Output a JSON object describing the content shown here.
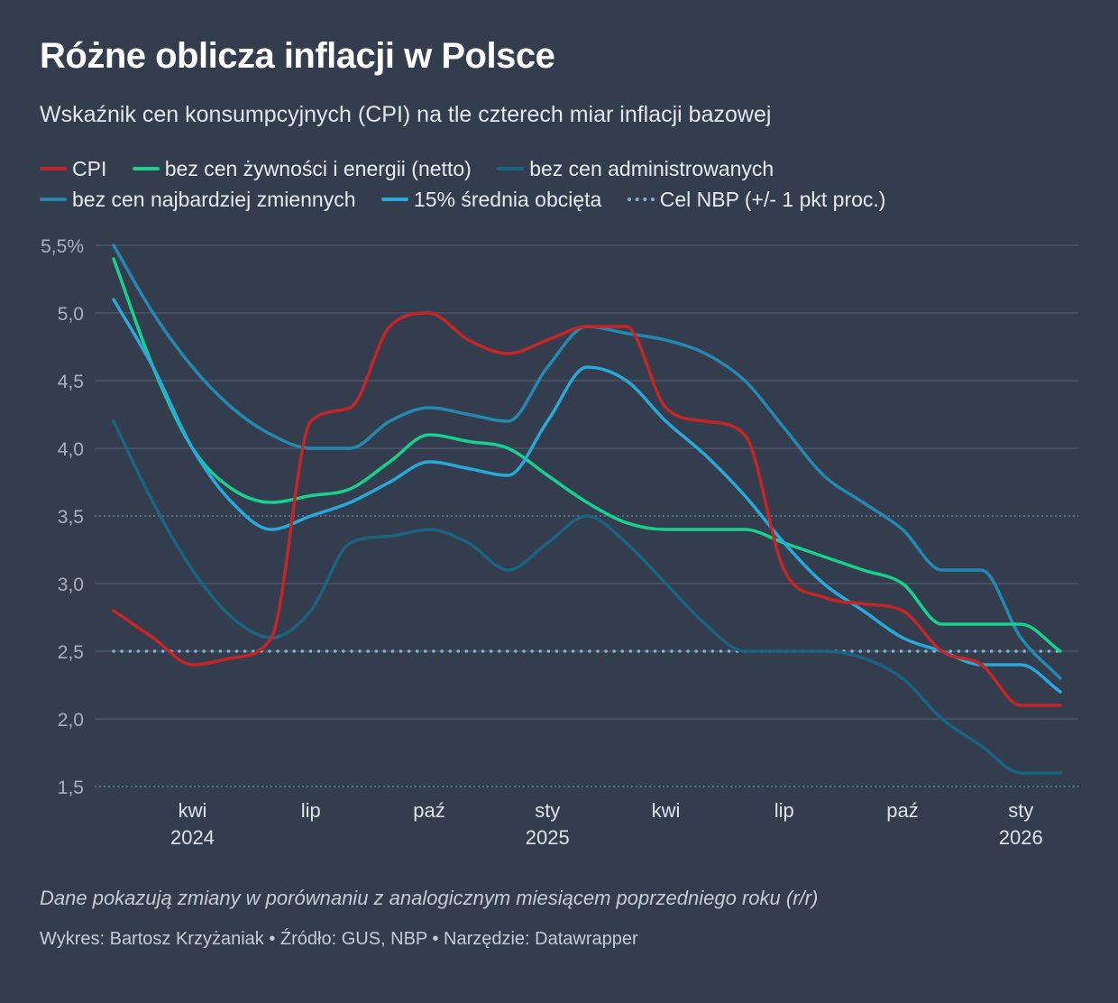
{
  "title": "Różne oblicza inflacji w Polsce",
  "subtitle": "Wskaźnik cen konsumpcyjnych (CPI) na tle czterech miar inflacji bazowej",
  "note": "Dane pokazują zmiany w porównaniu z analogicznym miesiącem poprzedniego roku (r/r)",
  "credit": "Wykres: Bartosz Krzyżaniak • Źródło: GUS, NBP • Narzędzie: Datawrapper",
  "legend": [
    {
      "label": "CPI",
      "color": "#c42526",
      "style": "solid"
    },
    {
      "label": "bez cen żywności i energii (netto)",
      "color": "#18d08f",
      "style": "solid"
    },
    {
      "label": "bez cen administrowanych",
      "color": "#1b6380",
      "style": "solid"
    },
    {
      "label": "bez cen najbardziej zmiennych",
      "color": "#2488b0",
      "style": "solid"
    },
    {
      "label": "15% średnia obcięta",
      "color": "#28a9da",
      "style": "solid"
    },
    {
      "label": "Cel NBP (+/- 1 pkt proc.)",
      "color": "#7fb6d4",
      "style": "dotted"
    }
  ],
  "chart_data": {
    "type": "line",
    "title": "Różne oblicza inflacji w Polsce",
    "xlabel": "",
    "ylabel": "",
    "x": [
      "2024-02",
      "2024-03",
      "2024-04",
      "2024-05",
      "2024-06",
      "2024-07",
      "2024-08",
      "2024-09",
      "2024-10",
      "2024-11",
      "2024-12",
      "2025-01",
      "2025-02",
      "2025-03",
      "2025-04",
      "2025-05",
      "2025-06",
      "2025-07",
      "2025-08",
      "2025-09",
      "2025-10",
      "2025-11",
      "2025-12",
      "2026-01",
      "2026-02"
    ],
    "ylim": [
      1.5,
      5.5
    ],
    "yticks": [
      1.5,
      2.0,
      2.5,
      3.0,
      3.5,
      4.0,
      4.5,
      5.0,
      5.5
    ],
    "ytick_labels": [
      "1,5",
      "2,0",
      "2,5",
      "3,0",
      "3,5",
      "4,0",
      "4,5",
      "5,0",
      "5,5%"
    ],
    "xticks": [
      {
        "x": "2024-04",
        "label": "kwi",
        "year": "2024"
      },
      {
        "x": "2024-07",
        "label": "lip",
        "year": ""
      },
      {
        "x": "2024-10",
        "label": "paź",
        "year": ""
      },
      {
        "x": "2025-01",
        "label": "sty",
        "year": "2025"
      },
      {
        "x": "2025-04",
        "label": "kwi",
        "year": ""
      },
      {
        "x": "2025-07",
        "label": "lip",
        "year": ""
      },
      {
        "x": "2025-10",
        "label": "paź",
        "year": ""
      },
      {
        "x": "2026-01",
        "label": "sty",
        "year": "2026"
      }
    ],
    "grid": true,
    "legend_position": "top",
    "target": {
      "center": 2.5,
      "band": [
        1.5,
        3.5
      ]
    },
    "series": [
      {
        "name": "CPI",
        "color": "#c42526",
        "values": [
          2.8,
          2.6,
          2.4,
          2.45,
          2.6,
          4.2,
          4.3,
          4.9,
          5.0,
          4.8,
          4.7,
          4.8,
          4.9,
          4.9,
          4.3,
          4.2,
          4.1,
          3.1,
          2.9,
          2.85,
          2.8,
          2.5,
          2.4,
          2.1,
          2.1
        ]
      },
      {
        "name": "bez cen żywności i energii (netto)",
        "color": "#18d08f",
        "values": [
          5.4,
          4.6,
          4.0,
          3.7,
          3.6,
          3.65,
          3.7,
          3.9,
          4.1,
          4.05,
          4.0,
          3.8,
          3.6,
          3.45,
          3.4,
          3.4,
          3.4,
          3.3,
          3.2,
          3.1,
          3.0,
          2.7,
          2.7,
          2.7,
          2.5
        ]
      },
      {
        "name": "bez cen administrowanych",
        "color": "#1b6380",
        "values": [
          4.2,
          3.6,
          3.1,
          2.75,
          2.6,
          2.8,
          3.3,
          3.35,
          3.4,
          3.3,
          3.1,
          3.3,
          3.5,
          3.3,
          3.0,
          2.7,
          2.5,
          2.5,
          2.5,
          2.45,
          2.3,
          2.0,
          1.8,
          1.6,
          1.6
        ]
      },
      {
        "name": "bez cen najbardziej zmiennych",
        "color": "#2488b0",
        "values": [
          5.5,
          5.0,
          4.6,
          4.3,
          4.1,
          4.0,
          4.0,
          4.2,
          4.3,
          4.25,
          4.2,
          4.6,
          4.9,
          4.85,
          4.8,
          4.7,
          4.5,
          4.15,
          3.8,
          3.6,
          3.4,
          3.1,
          3.1,
          2.6,
          2.3
        ]
      },
      {
        "name": "15% średnia obcięta",
        "color": "#28a9da",
        "values": [
          5.1,
          4.6,
          4.0,
          3.6,
          3.4,
          3.5,
          3.6,
          3.75,
          3.9,
          3.85,
          3.8,
          4.2,
          4.6,
          4.5,
          4.2,
          3.95,
          3.65,
          3.3,
          3.0,
          2.8,
          2.6,
          2.5,
          2.4,
          2.4,
          2.2
        ]
      }
    ]
  }
}
